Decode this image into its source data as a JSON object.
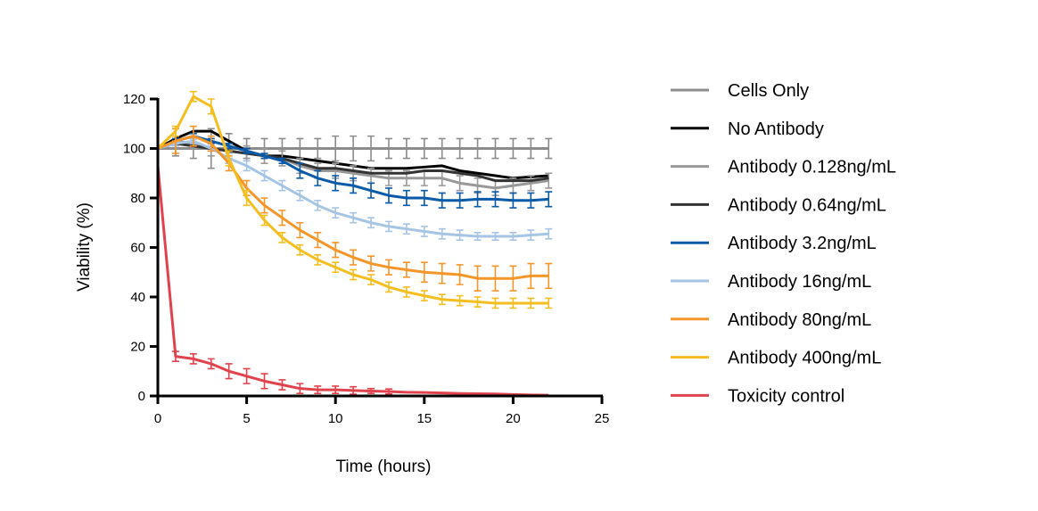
{
  "chart_data": {
    "type": "line",
    "title": "",
    "xlabel": "Time (hours)",
    "ylabel": "Viability (%)",
    "xlim": [
      0,
      25
    ],
    "ylim": [
      0,
      120
    ],
    "xticks": [
      0,
      5,
      10,
      15,
      20,
      25
    ],
    "yticks": [
      0,
      20,
      40,
      60,
      80,
      100,
      120
    ],
    "grid": false,
    "legend_position": "right",
    "x": [
      0,
      1,
      2,
      3,
      4,
      5,
      6,
      7,
      8,
      9,
      10,
      11,
      12,
      13,
      14,
      15,
      16,
      17,
      18,
      19,
      20,
      21,
      22
    ],
    "series": [
      {
        "name": "Cells Only",
        "color": "#8c8c8c",
        "values": [
          100,
          100,
          100,
          100,
          100,
          100,
          100,
          100,
          100,
          100,
          100,
          100,
          100,
          100,
          100,
          100,
          100,
          100,
          100,
          100,
          100,
          100,
          100
        ],
        "error": [
          0,
          3,
          4,
          8,
          6,
          4,
          4,
          4,
          4,
          4,
          5,
          5,
          5,
          4,
          4,
          4,
          4,
          4,
          4,
          4,
          4,
          4,
          4
        ]
      },
      {
        "name": "No Antibody",
        "color": "#000000",
        "values": [
          100,
          104,
          107,
          107,
          103,
          99,
          97,
          97,
          96,
          95,
          94,
          93,
          92,
          92,
          92,
          92.5,
          93,
          91,
          90,
          89,
          88,
          88.5,
          89
        ],
        "error": null
      },
      {
        "name": "Antibody 0.128ng/mL",
        "color": "#999999",
        "values": [
          100,
          103,
          102,
          100,
          99,
          98,
          97,
          96,
          93,
          91,
          91,
          90,
          89,
          88,
          88,
          88,
          88,
          86,
          85,
          84,
          85,
          86,
          87
        ],
        "error": [
          0,
          2,
          2,
          3,
          3,
          3,
          3,
          3,
          3,
          3,
          3,
          3,
          3,
          3,
          3,
          3,
          3,
          3,
          3,
          3,
          3,
          3,
          3
        ]
      },
      {
        "name": "Antibody 0.64ng/mL",
        "color": "#333333",
        "values": [
          100,
          102,
          101,
          100,
          99,
          98,
          97,
          96,
          94,
          92,
          92,
          91,
          90,
          90,
          90,
          91,
          91,
          90,
          89,
          87,
          87,
          87,
          88
        ],
        "error": null
      },
      {
        "name": "Antibody 3.2ng/mL",
        "color": "#0a5aa8",
        "values": [
          100,
          103,
          105,
          103,
          101,
          99,
          97,
          95,
          91,
          88,
          86,
          85,
          83,
          81,
          80,
          80,
          79,
          79,
          79.5,
          79.5,
          79,
          79,
          79.5
        ],
        "error": [
          0,
          1,
          1,
          1,
          1,
          1,
          1,
          1,
          3,
          3,
          3,
          3,
          3,
          3,
          3,
          3,
          3,
          3,
          3,
          3,
          3,
          3,
          3
        ]
      },
      {
        "name": "Antibody 16ng/mL",
        "color": "#a6c4e4",
        "values": [
          100,
          102,
          103,
          100,
          96,
          93,
          89,
          85,
          81,
          77,
          74,
          72,
          70,
          68.5,
          67.5,
          66.5,
          65.5,
          65,
          64.5,
          64.5,
          64.5,
          65,
          65.5
        ],
        "error": [
          0,
          1,
          1,
          1,
          2,
          2,
          2,
          2,
          2,
          2,
          2,
          2,
          2,
          2,
          2,
          2,
          2,
          2,
          1.5,
          1.5,
          1.5,
          2,
          2
        ]
      },
      {
        "name": "Antibody 80ng/mL",
        "color": "#f5962a",
        "values": [
          100,
          103,
          105,
          102,
          94,
          84,
          77,
          72,
          67,
          63,
          59,
          56,
          53.5,
          52,
          51,
          50,
          49.5,
          49,
          47.5,
          47.5,
          47.5,
          48.5,
          48.5
        ],
        "error": [
          0,
          5,
          4,
          3,
          3,
          3,
          3,
          3,
          3,
          3,
          3,
          3,
          3,
          3,
          3,
          4,
          4,
          4,
          5,
          5,
          5,
          5,
          5
        ]
      },
      {
        "name": "Antibody 400ng/mL",
        "color": "#f5be20",
        "values": [
          100,
          107,
          121,
          117,
          96,
          80,
          71,
          64,
          59,
          55,
          52,
          49,
          47,
          44,
          42,
          40.5,
          39,
          38.5,
          38,
          37.5,
          37.5,
          37.5,
          37.5
        ],
        "error": [
          0,
          2,
          2,
          3,
          3,
          3,
          2,
          2,
          2,
          2,
          2,
          2,
          2,
          2,
          2,
          2,
          2,
          2,
          2,
          2,
          2,
          2,
          2
        ]
      },
      {
        "name": "Toxicity control",
        "color": "#e0434e",
        "values": [
          93,
          16,
          15,
          13,
          10,
          8,
          6,
          4.5,
          3,
          2.5,
          2.5,
          2.2,
          2,
          1.8,
          1.5,
          1.4,
          1.2,
          1,
          0.9,
          0.8,
          0.6,
          0.4,
          0.3
        ],
        "error": [
          0,
          2,
          2,
          2,
          3,
          3,
          3,
          2,
          2,
          1.5,
          1.5,
          1.5,
          1,
          1,
          0,
          0,
          0,
          0,
          0,
          0,
          0,
          0,
          0
        ]
      }
    ]
  }
}
